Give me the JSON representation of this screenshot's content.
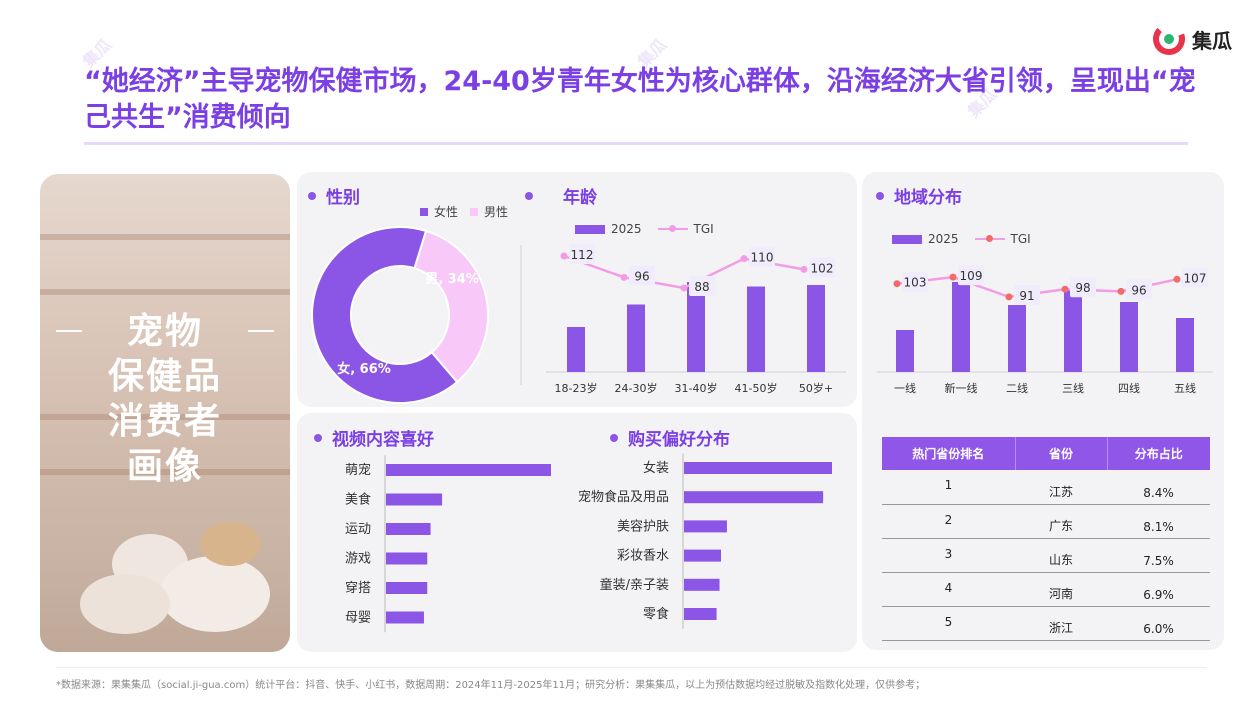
{
  "brand": {
    "name": "集瓜",
    "watermark": "集瓜"
  },
  "title": "“她经济”主导宠物保健市场，24-40岁青年女性为核心群体，沿海经济大省引领，呈现出“宠己共生”消费倾向",
  "photo_caption": {
    "line1": "宠物",
    "line2": "保健品",
    "line3": "消费者",
    "line4": "画像"
  },
  "sections": {
    "gender": "性别",
    "age": "年龄",
    "region": "地域分布",
    "video": "视频内容喜好",
    "purchase": "购买偏好分布"
  },
  "legend": {
    "bar": "2025",
    "line": "TGI"
  },
  "table": {
    "headers": [
      "热门省份排名",
      "省份",
      "分布占比"
    ],
    "rows": [
      {
        "rank": "1",
        "province": "江苏",
        "pct": "8.4%"
      },
      {
        "rank": "2",
        "province": "广东",
        "pct": "8.1%"
      },
      {
        "rank": "3",
        "province": "山东",
        "pct": "7.5%"
      },
      {
        "rank": "4",
        "province": "河南",
        "pct": "6.9%"
      },
      {
        "rank": "5",
        "province": "浙江",
        "pct": "6.0%"
      }
    ]
  },
  "footer": "*数据来源：果集集瓜（social.ji-gua.com）统计平台：抖音、快手、小红书，数据周期：2024年11月-2025年11月；研究分析：果集集瓜，以上为预估数据均经过脱敏及指数化处理，仅供参考；",
  "colors": {
    "primary": "#8b55e6",
    "pink": "#f8c8f8",
    "tgi_line": "#f29ce8",
    "tgi_marker_red": "#f36a6a",
    "title": "#7b3fe4"
  },
  "chart_data": [
    {
      "id": "gender",
      "type": "pie",
      "legend_position": "top",
      "slices": [
        {
          "name": "女性",
          "label": "女, 66%",
          "value": 66,
          "color": "#8b55e6"
        },
        {
          "name": "男性",
          "label": "男, 34%",
          "value": 34,
          "color": "#f8c8f8"
        }
      ]
    },
    {
      "id": "age",
      "type": "bar",
      "categories": [
        "18-23岁",
        "24-30岁",
        "31-40岁",
        "41-50岁",
        "50岁+"
      ],
      "series": [
        {
          "name": "2025",
          "values": [
            30,
            45,
            60,
            57,
            58
          ]
        },
        {
          "name": "TGI",
          "type": "line",
          "values": [
            112,
            96,
            88,
            110,
            102
          ]
        }
      ]
    },
    {
      "id": "region",
      "type": "bar",
      "categories": [
        "一线",
        "新一线",
        "二线",
        "三线",
        "四线",
        "五线"
      ],
      "series": [
        {
          "name": "2025",
          "values": [
            42,
            90,
            67,
            83,
            70,
            54
          ]
        },
        {
          "name": "TGI",
          "type": "line",
          "values": [
            103,
            109,
            91,
            98,
            96,
            107
          ]
        }
      ]
    },
    {
      "id": "video",
      "type": "bar",
      "orientation": "horizontal",
      "categories": [
        "萌宠",
        "美食",
        "运动",
        "游戏",
        "穿搭",
        "母婴"
      ],
      "values": [
        100,
        34,
        27,
        25,
        25,
        23
      ]
    },
    {
      "id": "purchase",
      "type": "bar",
      "orientation": "horizontal",
      "categories": [
        "女装",
        "宠物食品及用品",
        "美容护肤",
        "彩妆香水",
        "童装/亲子装",
        "零食"
      ],
      "values": [
        100,
        94,
        29,
        25,
        24,
        22
      ]
    }
  ]
}
